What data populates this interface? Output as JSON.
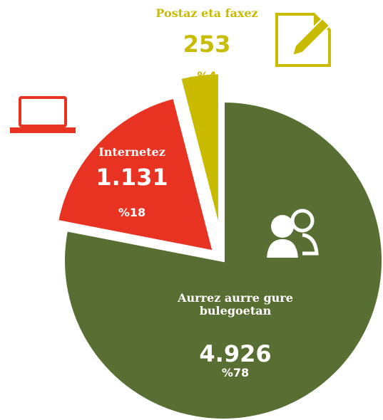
{
  "chart_data": {
    "type": "pie",
    "categories": [
      "Aurrez aurre gure bulegoetan",
      "Internetez",
      "Postaz eta faxez"
    ],
    "values": [
      4926,
      1131,
      253
    ],
    "value_labels": [
      "4.926",
      "1.131",
      "253"
    ],
    "percent_labels": [
      "%78",
      "%18",
      "%4"
    ],
    "colors": [
      "#596e33",
      "#e83323",
      "#c9bb00"
    ]
  }
}
